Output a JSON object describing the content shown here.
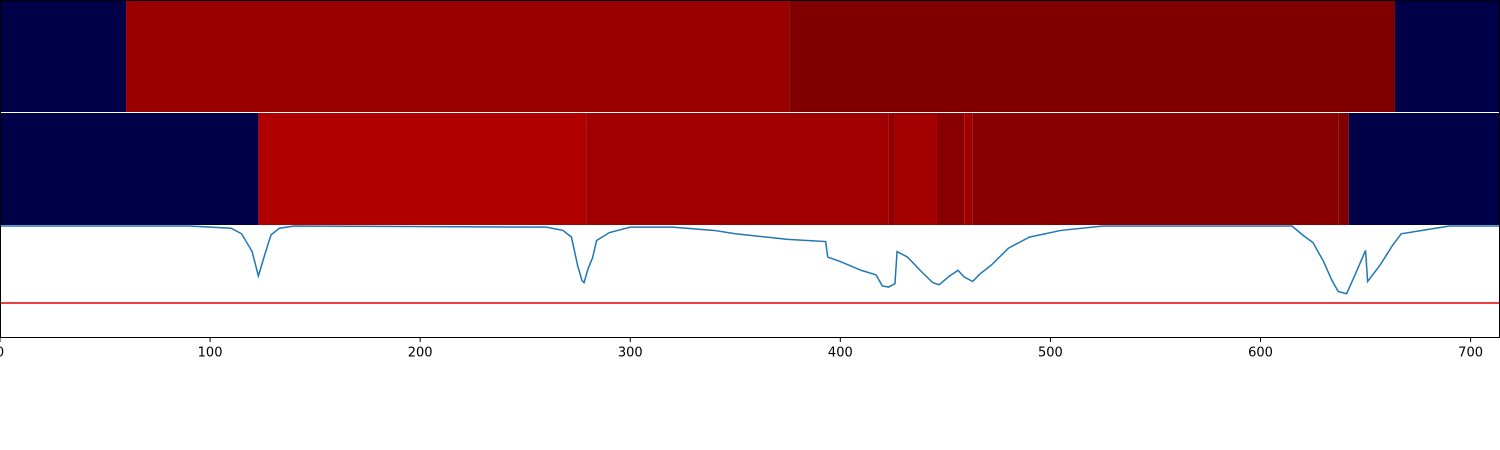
{
  "chart_data": {
    "type": "line",
    "xlim": [
      0,
      714
    ],
    "xticks": [
      0,
      100,
      200,
      300,
      400,
      500,
      600,
      700
    ],
    "ylim": [
      0,
      1
    ],
    "tracks": [
      {
        "segments": [
          {
            "start": 0,
            "end": 60,
            "color": "#000048"
          },
          {
            "start": 60,
            "end": 376,
            "color": "#990000"
          },
          {
            "start": 376,
            "end": 664,
            "color": "#800000"
          },
          {
            "start": 664,
            "end": 714,
            "color": "#000048"
          }
        ]
      },
      {
        "segments": [
          {
            "start": 0,
            "end": 123,
            "color": "#000048"
          },
          {
            "start": 123,
            "end": 279,
            "color": "#b00000"
          },
          {
            "start": 279,
            "end": 423,
            "color": "#a00000"
          },
          {
            "start": 423,
            "end": 426,
            "color": "#900000"
          },
          {
            "start": 426,
            "end": 446,
            "color": "#a30000"
          },
          {
            "start": 446,
            "end": 459,
            "color": "#8a0000"
          },
          {
            "start": 459,
            "end": 463,
            "color": "#a00000"
          },
          {
            "start": 463,
            "end": 637,
            "color": "#880000"
          },
          {
            "start": 637,
            "end": 642,
            "color": "#800000"
          },
          {
            "start": 642,
            "end": 714,
            "color": "#000048"
          }
        ]
      }
    ],
    "threshold": {
      "value": 0.306,
      "color": "#e00000"
    },
    "series": [
      {
        "color": "#1f77b4",
        "x": [
          0,
          90,
          110,
          115,
          120,
          123,
          126,
          129,
          133,
          140,
          260,
          268,
          272,
          275,
          277,
          278,
          280,
          282,
          284,
          290,
          300,
          320,
          340,
          350,
          360,
          375,
          393,
          394,
          400,
          410,
          417,
          420,
          423,
          426,
          427,
          432,
          438,
          444,
          447,
          452,
          456,
          459,
          463,
          466,
          472,
          480,
          490,
          505,
          525,
          615,
          620,
          625,
          630,
          634,
          637,
          641,
          645,
          650,
          651,
          657,
          663,
          667,
          680,
          690,
          714
        ],
        "values": [
          1.0,
          1.0,
          0.98,
          0.93,
          0.77,
          0.55,
          0.74,
          0.92,
          0.98,
          1.0,
          0.99,
          0.96,
          0.9,
          0.64,
          0.51,
          0.49,
          0.62,
          0.71,
          0.87,
          0.94,
          0.99,
          0.99,
          0.96,
          0.93,
          0.91,
          0.88,
          0.86,
          0.72,
          0.68,
          0.6,
          0.56,
          0.46,
          0.45,
          0.48,
          0.77,
          0.72,
          0.6,
          0.49,
          0.47,
          0.55,
          0.6,
          0.54,
          0.5,
          0.56,
          0.65,
          0.8,
          0.9,
          0.96,
          1.0,
          1.0,
          0.92,
          0.85,
          0.68,
          0.51,
          0.41,
          0.39,
          0.56,
          0.78,
          0.5,
          0.65,
          0.83,
          0.93,
          0.97,
          1.0,
          1.0
        ]
      }
    ]
  }
}
